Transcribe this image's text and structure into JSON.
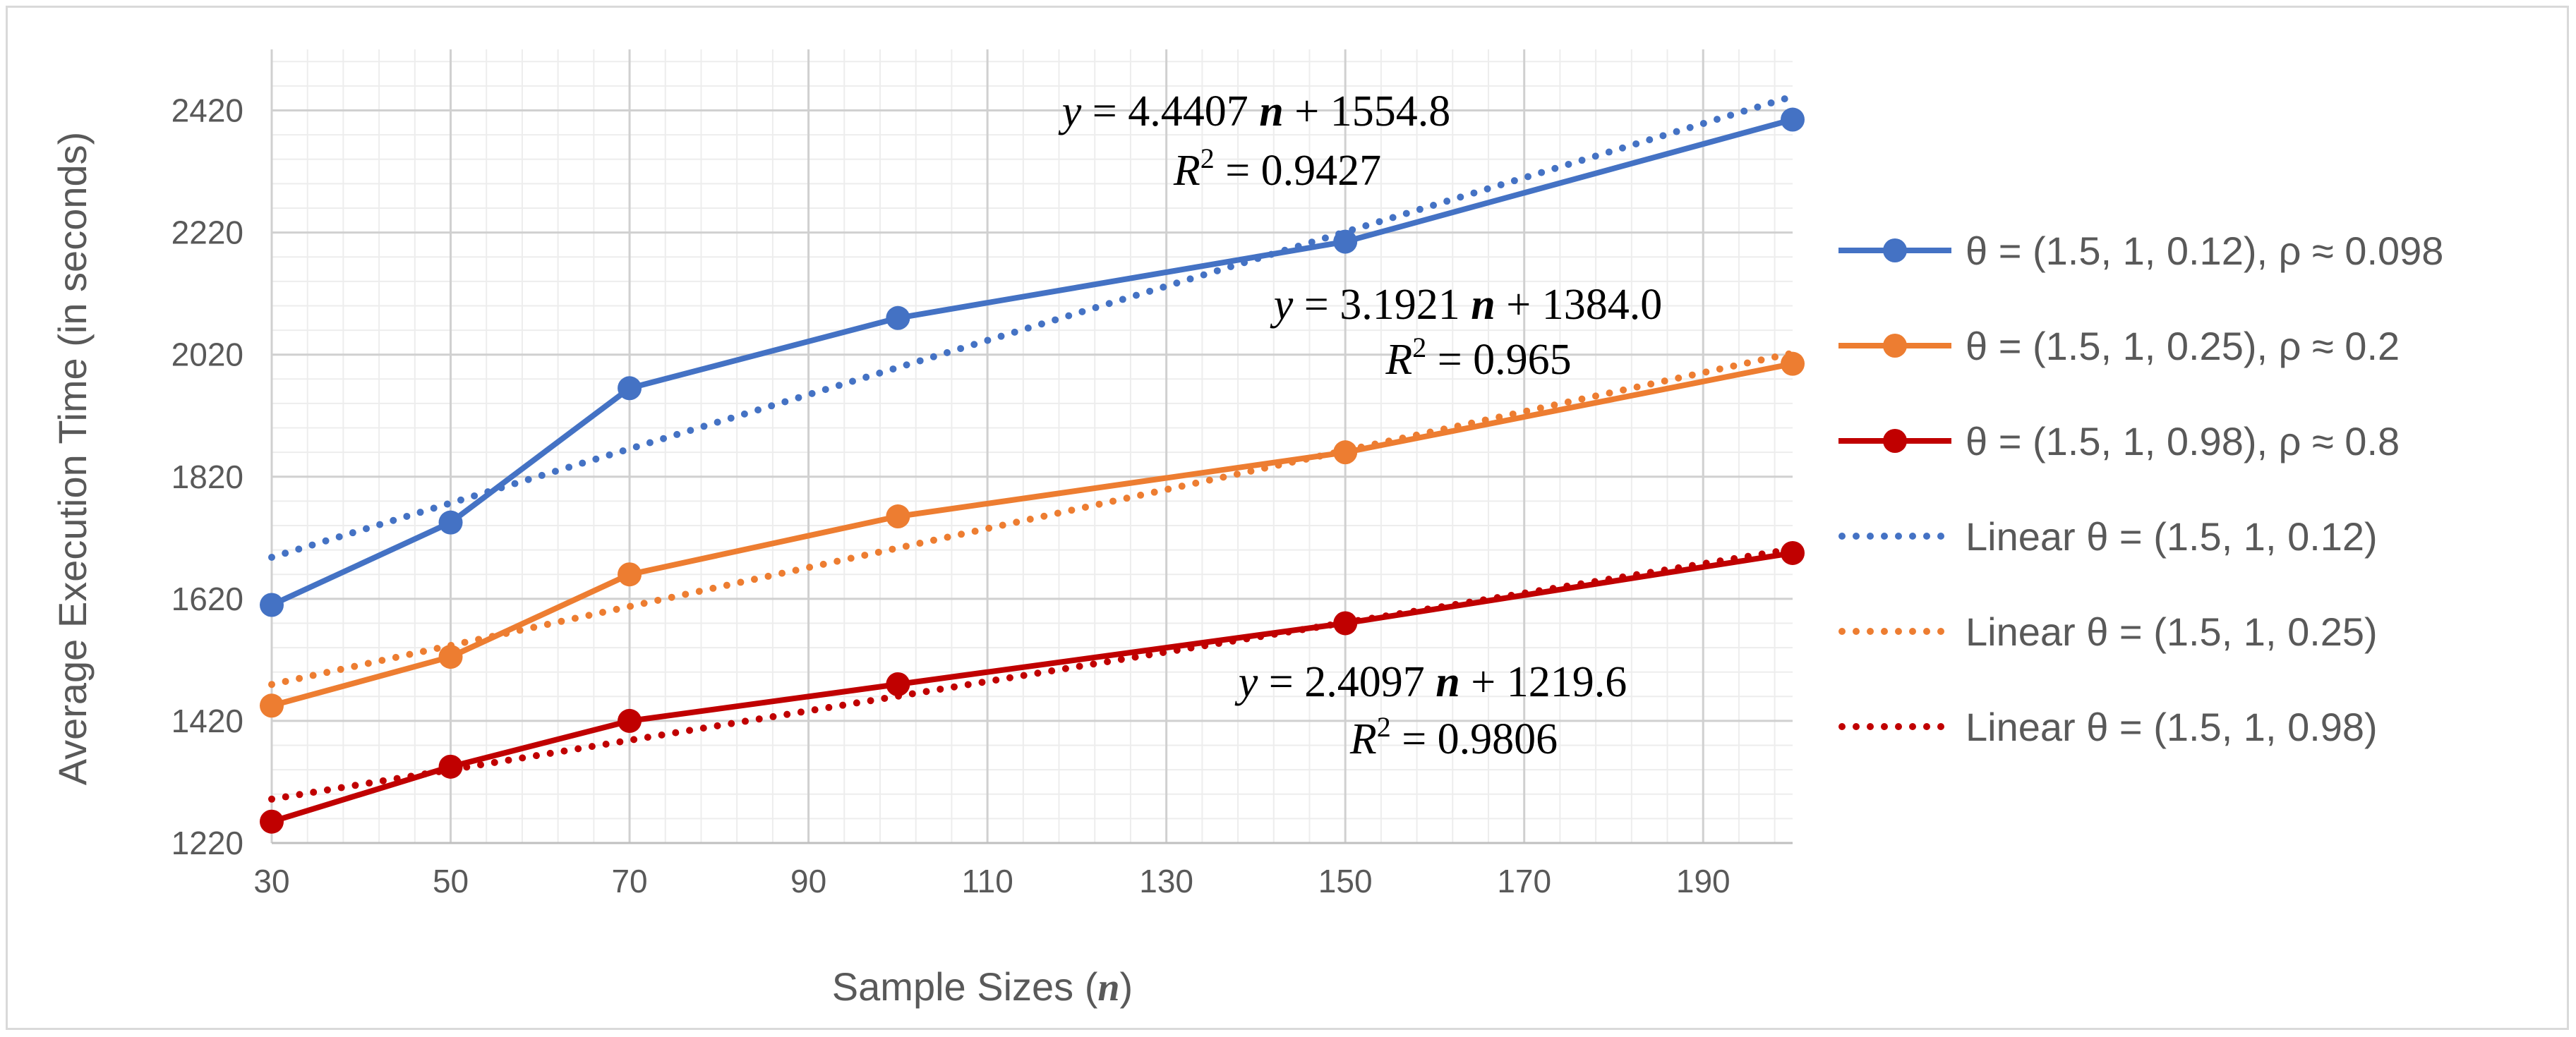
{
  "chart_data": {
    "type": "line",
    "title": "",
    "xlabel": "Sample Sizes",
    "xlabel_var": "n",
    "ylabel": "Average Execution Time (in seconds)",
    "xlim": [
      30,
      200
    ],
    "ylim": [
      1220,
      2520
    ],
    "x_ticks": [
      30,
      50,
      70,
      90,
      110,
      130,
      150,
      170,
      190
    ],
    "y_ticks": [
      1220,
      1420,
      1620,
      1820,
      2020,
      2220,
      2420
    ],
    "grid": true,
    "x": [
      30,
      50,
      70,
      100,
      150,
      200
    ],
    "series": [
      {
        "name": "θ = (1.5, 1, 0.12),  ρ ≈ 0.098",
        "color": "#4472c4",
        "values": [
          1610,
          1745,
          1965,
          2080,
          2205,
          2405
        ]
      },
      {
        "name": "θ = (1.5, 1, 0.25),  ρ ≈ 0.2",
        "color": "#ed7d31",
        "values": [
          1445,
          1525,
          1660,
          1755,
          1860,
          2005
        ]
      },
      {
        "name": "θ = (1.5, 1, 0.98),  ρ ≈ 0.8",
        "color": "#c00000",
        "values": [
          1255,
          1345,
          1420,
          1480,
          1580,
          1695
        ]
      }
    ],
    "trendlines": [
      {
        "name": "Linear θ = (1.5, 1, 0.12)",
        "color": "#4472c4",
        "slope": 4.4407,
        "intercept": 1554.8,
        "eq_y": "y",
        "eq_coef": "= 4.4407",
        "eq_var": "n",
        "eq_const": "+ 1554.8",
        "r2_label": "R",
        "r2_exp": "2",
        "r2_value": "= 0.9427"
      },
      {
        "name": "Linear θ = (1.5, 1, 0.25)",
        "color": "#ed7d31",
        "slope": 3.1921,
        "intercept": 1384.0,
        "eq_y": "y",
        "eq_coef": "= 3.1921",
        "eq_var": "n",
        "eq_const": "+ 1384.0",
        "r2_label": "R",
        "r2_exp": "2",
        "r2_value": "= 0.965"
      },
      {
        "name": "Linear θ = (1.5, 1, 0.98)",
        "color": "#c00000",
        "slope": 2.4097,
        "intercept": 1219.6,
        "eq_y": "y",
        "eq_coef": "= 2.4097",
        "eq_var": "n",
        "eq_const": "+ 1219.6",
        "r2_label": "R",
        "r2_exp": "2",
        "r2_value": "= 0.9806"
      }
    ],
    "legend_position": "right"
  }
}
